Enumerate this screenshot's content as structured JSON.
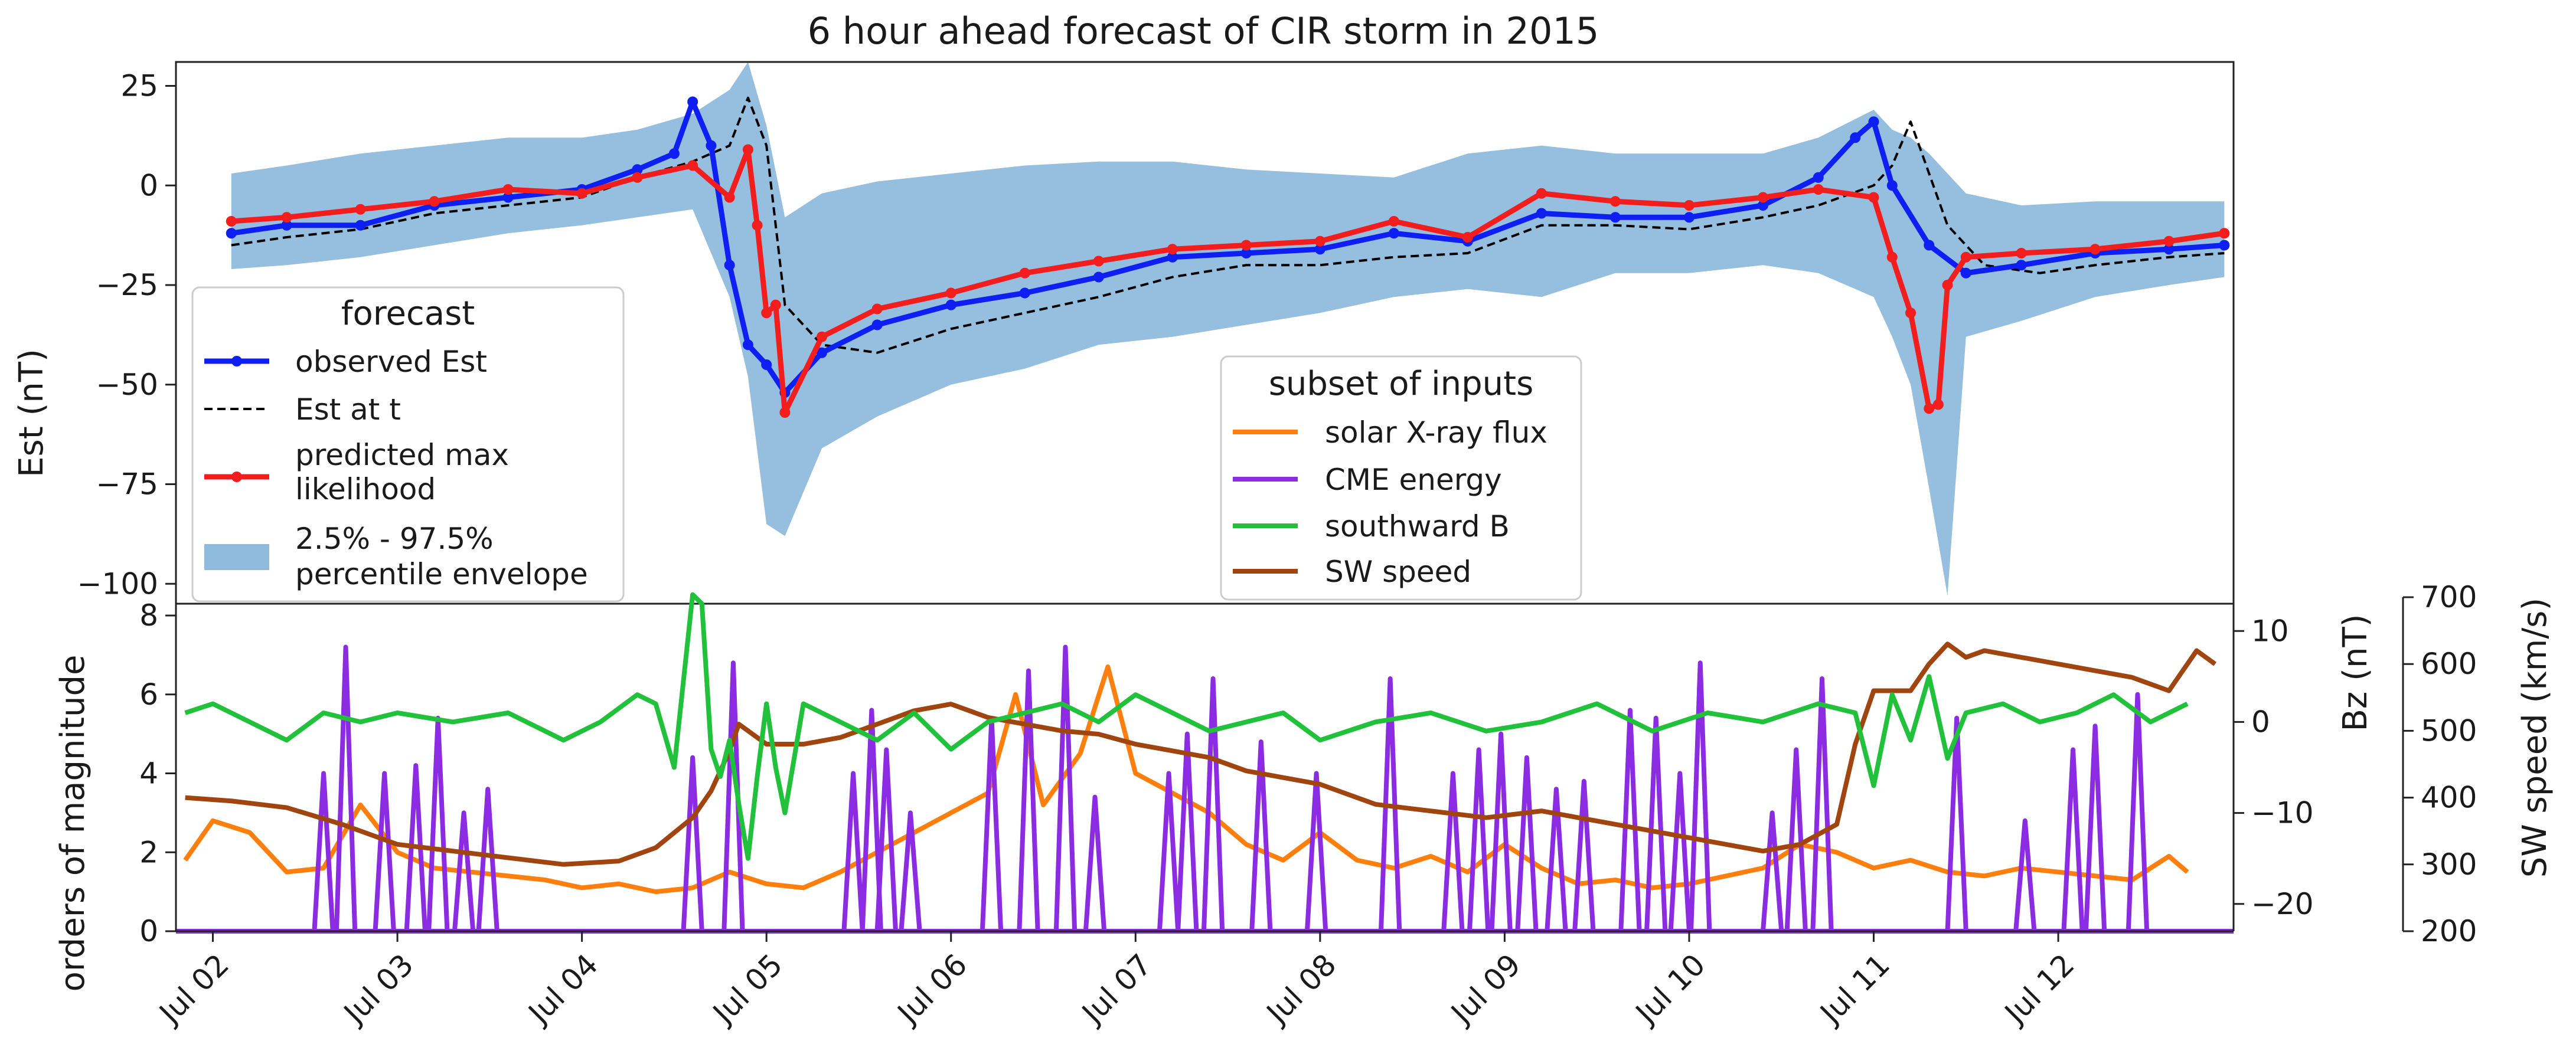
{
  "chart_data": [
    {
      "type": "line",
      "title": "6 hour ahead forecast of CIR storm in 2015",
      "xlabel": "",
      "ylabel": "Est (nT)",
      "ylim": [
        -105,
        31
      ],
      "yticks": [
        25,
        0,
        -25,
        -50,
        -75,
        -100
      ],
      "ytick_labels": [
        "25",
        "0",
        "−25",
        "−50",
        "−75",
        "−100"
      ],
      "xlim": [
        1.8,
        12.95
      ],
      "xticks": [
        2,
        3,
        4,
        5,
        6,
        7,
        8,
        9,
        10,
        11,
        12
      ],
      "xtick_labels": [
        "Jul 02",
        "Jul 03",
        "Jul 04",
        "Jul 05",
        "Jul 06",
        "Jul 07",
        "Jul 08",
        "Jul 09",
        "Jul 10",
        "Jul 11",
        "Jul 12"
      ],
      "legend": {
        "title": "forecast",
        "placement": "left",
        "entries": [
          "observed Est",
          "Est at t",
          "predicted max\nlikelihood",
          "2.5% - 97.5%\npercentile envelope"
        ]
      },
      "series": [
        {
          "name": "observed Est",
          "color": "#0d1ff2",
          "marker": "dot",
          "x": [
            2.1,
            2.4,
            2.8,
            3.2,
            3.6,
            4.0,
            4.3,
            4.5,
            4.6,
            4.7,
            4.8,
            4.9,
            5.0,
            5.1,
            5.3,
            5.6,
            6.0,
            6.4,
            6.8,
            7.2,
            7.6,
            8.0,
            8.4,
            8.8,
            9.2,
            9.6,
            10.0,
            10.4,
            10.7,
            10.9,
            11.0,
            11.1,
            11.3,
            11.5,
            11.8,
            12.2,
            12.6,
            12.9
          ],
          "y": [
            -12,
            -10,
            -10,
            -5,
            -3,
            -1,
            4,
            8,
            21,
            10,
            -20,
            -40,
            -45,
            -52,
            -42,
            -35,
            -30,
            -27,
            -23,
            -18,
            -17,
            -16,
            -12,
            -14,
            -7,
            -8,
            -8,
            -5,
            2,
            12,
            16,
            0,
            -15,
            -22,
            -20,
            -17,
            -16,
            -15
          ]
        },
        {
          "name": "Est at t",
          "color": "#000000",
          "dash": true,
          "x": [
            2.1,
            2.4,
            2.8,
            3.2,
            3.6,
            4.0,
            4.3,
            4.6,
            4.8,
            4.9,
            5.0,
            5.1,
            5.3,
            5.6,
            6.0,
            6.4,
            6.8,
            7.2,
            7.6,
            8.0,
            8.4,
            8.8,
            9.2,
            9.6,
            10.0,
            10.4,
            10.7,
            11.0,
            11.1,
            11.2,
            11.4,
            11.6,
            11.9,
            12.2,
            12.6,
            12.9
          ],
          "y": [
            -15,
            -13,
            -11,
            -7,
            -5,
            -3,
            2,
            6,
            10,
            22,
            10,
            -30,
            -40,
            -42,
            -36,
            -32,
            -28,
            -23,
            -20,
            -20,
            -18,
            -17,
            -10,
            -10,
            -11,
            -8,
            -5,
            0,
            5,
            16,
            -10,
            -20,
            -22,
            -20,
            -18,
            -17
          ]
        },
        {
          "name": "predicted max likelihood",
          "color": "#f21d1d",
          "marker": "dot",
          "x": [
            2.1,
            2.4,
            2.8,
            3.2,
            3.6,
            4.0,
            4.3,
            4.6,
            4.8,
            4.9,
            4.95,
            5.0,
            5.05,
            5.1,
            5.3,
            5.6,
            6.0,
            6.4,
            6.8,
            7.2,
            7.6,
            8.0,
            8.4,
            8.8,
            9.2,
            9.6,
            10.0,
            10.4,
            10.7,
            11.0,
            11.1,
            11.2,
            11.3,
            11.35,
            11.4,
            11.5,
            11.8,
            12.2,
            12.6,
            12.9
          ],
          "y": [
            -9,
            -8,
            -6,
            -4,
            -1,
            -2,
            2,
            5,
            -3,
            9,
            -10,
            -32,
            -30,
            -57,
            -38,
            -31,
            -27,
            -22,
            -19,
            -16,
            -15,
            -14,
            -9,
            -13,
            -2,
            -4,
            -5,
            -3,
            -1,
            -3,
            -18,
            -32,
            -56,
            -55,
            -25,
            -18,
            -17,
            -16,
            -14,
            -12
          ]
        }
      ],
      "envelope": {
        "name": "2.5% - 97.5% percentile envelope",
        "color": "#8fbbdd",
        "x": [
          2.1,
          2.4,
          2.8,
          3.2,
          3.6,
          4.0,
          4.3,
          4.6,
          4.8,
          4.9,
          5.0,
          5.1,
          5.3,
          5.6,
          6.0,
          6.4,
          6.8,
          7.2,
          7.6,
          8.0,
          8.4,
          8.8,
          9.2,
          9.6,
          10.0,
          10.4,
          10.7,
          11.0,
          11.1,
          11.2,
          11.3,
          11.4,
          11.5,
          11.8,
          12.2,
          12.6,
          12.9
        ],
        "upper": [
          3,
          5,
          8,
          10,
          12,
          12,
          14,
          18,
          24,
          31,
          15,
          -8,
          -2,
          1,
          3,
          5,
          6,
          6,
          4,
          3,
          2,
          8,
          10,
          8,
          8,
          8,
          12,
          19,
          14,
          12,
          8,
          3,
          -2,
          -5,
          -4,
          -4,
          -4
        ],
        "lower": [
          -21,
          -20,
          -18,
          -15,
          -12,
          -10,
          -8,
          -6,
          -28,
          -48,
          -85,
          -88,
          -66,
          -58,
          -50,
          -46,
          -40,
          -38,
          -35,
          -32,
          -28,
          -26,
          -28,
          -22,
          -22,
          -20,
          -22,
          -28,
          -38,
          -50,
          -76,
          -103,
          -38,
          -34,
          -28,
          -25,
          -23
        ]
      }
    },
    {
      "type": "line",
      "title": "",
      "xlabel": "",
      "ylabel": "orders of magnitude",
      "ylim": [
        0,
        8.3
      ],
      "yticks": [
        0,
        2,
        4,
        6,
        8
      ],
      "ytick_labels": [
        "0",
        "2",
        "4",
        "6",
        "8"
      ],
      "xlim": [
        1.8,
        12.95
      ],
      "secondary_axes": [
        {
          "label": "Bz (nT)",
          "ylim": [
            -23,
            13
          ],
          "yticks": [
            10,
            0,
            -10,
            -20
          ],
          "ytick_labels": [
            "10",
            "0",
            "−10",
            "−20"
          ]
        },
        {
          "label": "SW speed (km/s)",
          "ylim": [
            200,
            700
          ],
          "yticks": [
            700,
            600,
            500,
            400,
            300,
            200
          ],
          "ytick_labels": [
            "700",
            "600",
            "500",
            "400",
            "300",
            "200"
          ]
        }
      ],
      "legend": {
        "title": "subset of inputs",
        "placement": "center",
        "entries": [
          "solar X-ray flux",
          "CME energy",
          "southward B",
          "SW speed"
        ]
      },
      "series": [
        {
          "name": "solar X-ray flux",
          "color": "#ff7f0e",
          "axis": "left",
          "x": [
            1.85,
            2.0,
            2.2,
            2.4,
            2.6,
            2.8,
            3.0,
            3.2,
            3.4,
            3.6,
            3.8,
            4.0,
            4.2,
            4.4,
            4.6,
            4.8,
            5.0,
            5.2,
            5.4,
            5.6,
            5.8,
            6.0,
            6.2,
            6.35,
            6.5,
            6.7,
            6.85,
            7.0,
            7.2,
            7.4,
            7.6,
            7.8,
            8.0,
            8.2,
            8.4,
            8.6,
            8.8,
            9.0,
            9.2,
            9.4,
            9.6,
            9.8,
            10.0,
            10.2,
            10.4,
            10.6,
            10.8,
            11.0,
            11.2,
            11.4,
            11.6,
            11.8,
            12.0,
            12.2,
            12.4,
            12.6,
            12.7
          ],
          "y": [
            1.8,
            2.8,
            2.5,
            1.5,
            1.6,
            3.2,
            2.0,
            1.6,
            1.5,
            1.4,
            1.3,
            1.1,
            1.2,
            1.0,
            1.1,
            1.5,
            1.2,
            1.1,
            1.5,
            2.0,
            2.5,
            3.0,
            3.5,
            6.0,
            3.2,
            4.5,
            6.7,
            4.0,
            3.5,
            3.0,
            2.2,
            1.8,
            2.5,
            1.8,
            1.6,
            1.9,
            1.5,
            2.2,
            1.6,
            1.2,
            1.3,
            1.1,
            1.2,
            1.4,
            1.6,
            2.2,
            2.0,
            1.6,
            1.8,
            1.5,
            1.4,
            1.6,
            1.5,
            1.4,
            1.3,
            1.9,
            1.5
          ]
        },
        {
          "name": "CME energy",
          "color": "#8b2be2",
          "axis": "left",
          "spikes": true,
          "x": [
            2.6,
            2.72,
            2.93,
            3.1,
            3.22,
            3.36,
            3.49,
            4.6,
            4.82,
            5.47,
            5.57,
            5.65,
            5.78,
            6.22,
            6.42,
            6.62,
            6.78,
            7.18,
            7.28,
            7.42,
            7.68,
            7.98,
            8.38,
            8.72,
            8.86,
            8.98,
            9.12,
            9.28,
            9.43,
            9.68,
            9.82,
            9.95,
            10.06,
            10.45,
            10.58,
            10.72,
            11.45,
            11.82,
            12.08,
            12.2,
            12.43
          ],
          "y": [
            4.0,
            7.2,
            4.0,
            4.2,
            5.4,
            3.0,
            3.6,
            4.4,
            6.8,
            4.0,
            5.6,
            4.6,
            3.0,
            5.4,
            6.6,
            7.2,
            3.4,
            4.0,
            5.0,
            6.4,
            4.8,
            4.0,
            6.4,
            4.0,
            4.6,
            5.0,
            4.4,
            3.6,
            3.8,
            5.6,
            5.4,
            4.0,
            6.8,
            3.0,
            4.6,
            6.4,
            5.4,
            2.8,
            4.6,
            5.2,
            6.0
          ]
        },
        {
          "name": "southward B",
          "color": "#22c13c",
          "axis": "Bz",
          "x": [
            1.85,
            2.0,
            2.2,
            2.4,
            2.6,
            2.8,
            3.0,
            3.3,
            3.6,
            3.9,
            4.1,
            4.3,
            4.4,
            4.5,
            4.6,
            4.65,
            4.7,
            4.75,
            4.8,
            4.85,
            4.9,
            4.95,
            5.0,
            5.05,
            5.1,
            5.2,
            5.4,
            5.6,
            5.8,
            6.0,
            6.2,
            6.4,
            6.6,
            6.8,
            7.0,
            7.2,
            7.4,
            7.6,
            7.8,
            8.0,
            8.3,
            8.6,
            8.9,
            9.2,
            9.5,
            9.8,
            10.1,
            10.4,
            10.7,
            10.9,
            11.0,
            11.1,
            11.2,
            11.3,
            11.4,
            11.5,
            11.7,
            11.9,
            12.1,
            12.3,
            12.5,
            12.7
          ],
          "y": [
            1,
            2,
            0,
            -2,
            1,
            0,
            1,
            0,
            1,
            -2,
            0,
            3,
            2,
            -5,
            14,
            13,
            -3,
            -6,
            -2,
            -9,
            -15,
            -6,
            2,
            -5,
            -10,
            2,
            0,
            -2,
            1,
            -3,
            0,
            1,
            2,
            0,
            3,
            1,
            -1,
            0,
            1,
            -2,
            0,
            1,
            -1,
            0,
            2,
            -1,
            1,
            0,
            2,
            1,
            -7,
            3,
            -2,
            5,
            -4,
            1,
            2,
            0,
            1,
            3,
            0,
            2
          ]
        },
        {
          "name": "SW speed",
          "color": "#a0450f",
          "axis": "SW",
          "x": [
            1.85,
            2.1,
            2.4,
            2.7,
            3.0,
            3.3,
            3.6,
            3.9,
            4.2,
            4.4,
            4.6,
            4.7,
            4.8,
            4.85,
            4.9,
            5.0,
            5.2,
            5.4,
            5.6,
            5.8,
            6.0,
            6.2,
            6.4,
            6.6,
            6.8,
            7.0,
            7.2,
            7.4,
            7.6,
            7.8,
            8.0,
            8.3,
            8.6,
            8.9,
            9.2,
            9.5,
            9.8,
            10.1,
            10.4,
            10.6,
            10.8,
            10.9,
            11.0,
            11.1,
            11.2,
            11.3,
            11.4,
            11.5,
            11.6,
            11.8,
            12.0,
            12.2,
            12.4,
            12.6,
            12.75,
            12.85
          ],
          "y": [
            400,
            395,
            385,
            360,
            330,
            320,
            310,
            300,
            305,
            325,
            370,
            410,
            470,
            510,
            500,
            480,
            480,
            490,
            510,
            530,
            540,
            520,
            510,
            500,
            495,
            480,
            470,
            460,
            440,
            430,
            420,
            390,
            380,
            370,
            380,
            365,
            350,
            335,
            320,
            330,
            360,
            480,
            560,
            560,
            560,
            600,
            630,
            610,
            620,
            610,
            600,
            590,
            580,
            560,
            620,
            600
          ]
        }
      ]
    }
  ]
}
